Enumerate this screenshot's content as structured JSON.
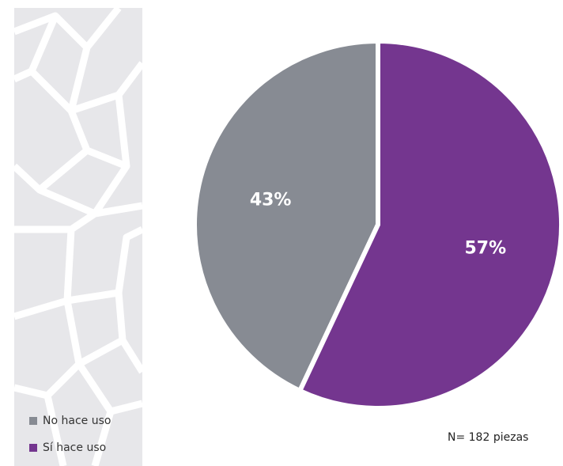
{
  "chart_data": {
    "type": "pie",
    "categories": [
      "No hace uso",
      "Sí hace uso"
    ],
    "values": [
      43,
      57
    ],
    "value_labels": [
      "43%",
      "57%"
    ],
    "colors": [
      "#878b93",
      "#74368f"
    ],
    "startangle": 90,
    "counterclock": true,
    "annotation": "N= 182 piezas"
  }
}
